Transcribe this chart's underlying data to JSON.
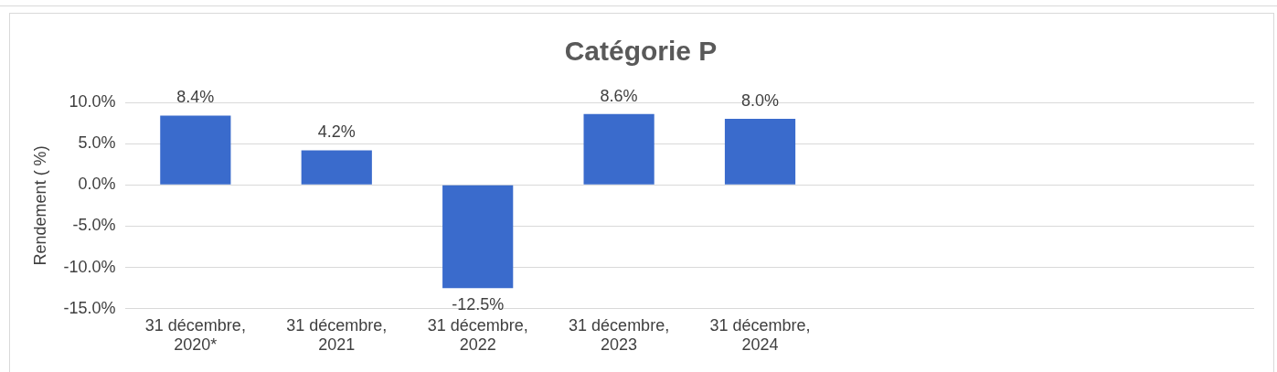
{
  "chart_data": {
    "type": "bar",
    "title": "Catégorie P",
    "ylabel": "Rendement ( %)",
    "categories": [
      "31 décembre, 2020*",
      "31 décembre, 2021",
      "31 décembre, 2022",
      "31 décembre, 2023",
      "31 décembre, 2024",
      null,
      null,
      null
    ],
    "values": [
      8.4,
      4.2,
      -12.5,
      8.6,
      8.0,
      null,
      null,
      null
    ],
    "value_labels": [
      "8.4%",
      "4.2%",
      "-12.5%",
      "8.6%",
      "8.0%",
      null,
      null,
      null
    ],
    "color": "#3a6bcc",
    "ylim": [
      -15,
      10
    ],
    "yticks": [
      {
        "value": -15,
        "label": "-15.0%"
      },
      {
        "value": -10,
        "label": "-10.0%"
      },
      {
        "value": -5,
        "label": "-5.0%"
      },
      {
        "value": 0,
        "label": "0.0%"
      },
      {
        "value": 5,
        "label": "5.0%"
      },
      {
        "value": 10,
        "label": "10.0%"
      }
    ],
    "grid": "y"
  }
}
